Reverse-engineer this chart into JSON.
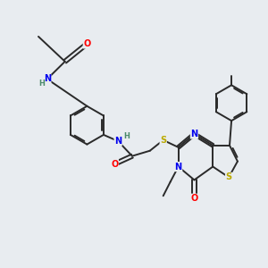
{
  "background_color": "#e8ecf0",
  "bond_color": "#2a2a2a",
  "atom_colors": {
    "O": "#ff0000",
    "N": "#0000ee",
    "S": "#bbaa00",
    "NH": "#4a8a6a",
    "C": "#2a2a2a"
  },
  "figsize": [
    3.0,
    3.0
  ],
  "dpi": 100,
  "lw": 1.4,
  "fs": 7.0
}
